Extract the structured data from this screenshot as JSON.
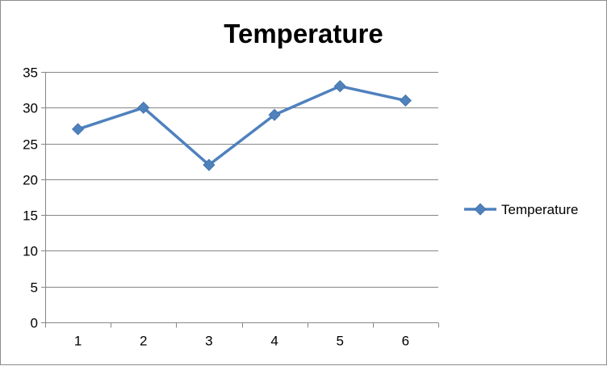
{
  "chart_data": {
    "type": "line",
    "title": "Temperature",
    "categories": [
      "1",
      "2",
      "3",
      "4",
      "5",
      "6"
    ],
    "series": [
      {
        "name": "Temperature",
        "values": [
          27,
          30,
          22,
          29,
          33,
          31
        ],
        "color": "#4F81BD",
        "marker": "diamond"
      }
    ],
    "ylim": [
      0,
      35
    ],
    "yticks": [
      0,
      5,
      10,
      15,
      20,
      25,
      30,
      35
    ],
    "grid": "horizontal",
    "legend": "right"
  }
}
